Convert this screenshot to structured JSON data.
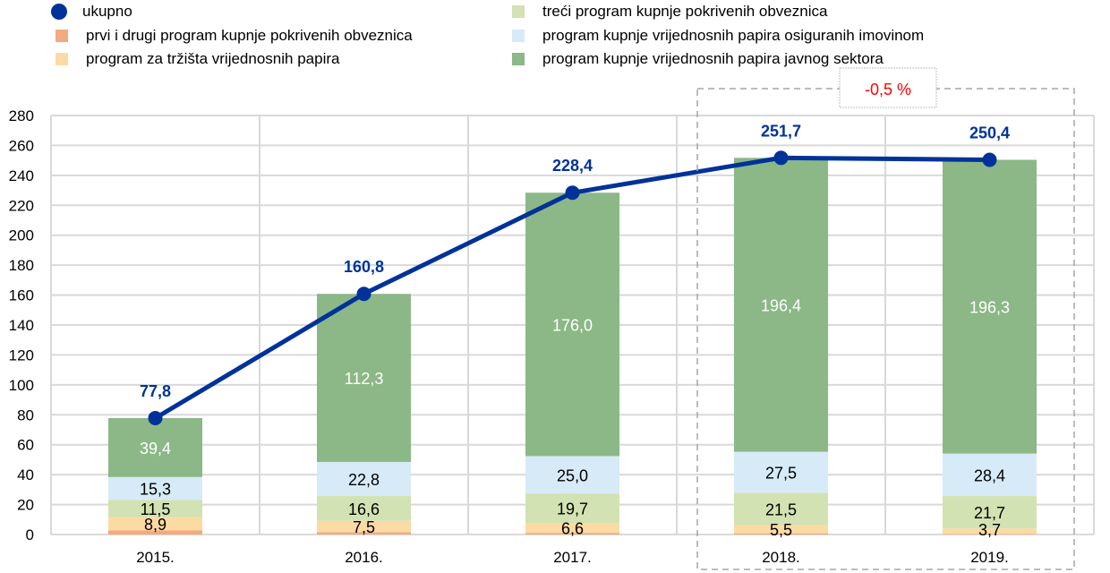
{
  "chart_data": {
    "type": "bar",
    "stacked": true,
    "categories": [
      "2015.",
      "2016.",
      "2017.",
      "2018.",
      "2019."
    ],
    "ylim": [
      0,
      280
    ],
    "yticks": [
      0,
      20,
      40,
      60,
      80,
      100,
      120,
      140,
      160,
      180,
      200,
      220,
      240,
      260,
      280
    ],
    "grid": true,
    "legend_position": "top",
    "series": [
      {
        "name": "prvi i drugi program kupnje pokrivenih obveznica",
        "color": "#f2aa7e",
        "values": [
          2.7,
          1.6,
          1.1,
          0.8,
          0.3
        ],
        "labels": [
          "",
          "",
          "",
          "",
          ""
        ]
      },
      {
        "name": "program za tržišta vrijednosnih papira",
        "color": "#fcdaa4",
        "values": [
          8.9,
          7.5,
          6.6,
          5.5,
          3.7
        ],
        "labels": [
          "8,9",
          "7,5",
          "6,6",
          "5,5",
          "3,7"
        ]
      },
      {
        "name": "treći program kupnje pokrivenih obveznica",
        "color": "#d2e2b2",
        "values": [
          11.5,
          16.6,
          19.7,
          21.5,
          21.7
        ],
        "labels": [
          "11,5",
          "16,6",
          "19,7",
          "21,5",
          "21,7"
        ]
      },
      {
        "name": "program kupnje vrijednosnih papira osiguranih imovinom",
        "color": "#d6ebf7",
        "values": [
          15.3,
          22.8,
          25.0,
          27.5,
          28.4
        ],
        "labels": [
          "15,3",
          "22,8",
          "25,0",
          "27,5",
          "28,4"
        ]
      },
      {
        "name": "program kupnje vrijednosnih papira javnog sektora",
        "color": "#8bb886",
        "values": [
          39.4,
          112.3,
          176.0,
          196.4,
          196.3
        ],
        "labels": [
          "39,4",
          "112,3",
          "176,0",
          "196,4",
          "196,3"
        ]
      }
    ],
    "line": {
      "name": "ukupno",
      "color": "#003299",
      "values": [
        77.8,
        160.8,
        228.4,
        251.7,
        250.4
      ],
      "labels": [
        "77,8",
        "160,8",
        "228,4",
        "251,7",
        "250,4"
      ]
    },
    "annotation": {
      "text": "-0,5 %",
      "color": "#ff0000",
      "highlight_categories": [
        "2018.",
        "2019."
      ]
    }
  },
  "legend": [
    {
      "label": "ukupno",
      "color": "#003299",
      "marker": "dot"
    },
    {
      "label": "prvi i drugi program kupnje pokrivenih obveznica",
      "color": "#f2aa7e",
      "marker": "square"
    },
    {
      "label": "program za tržišta vrijednosnih papira",
      "color": "#fcdaa4",
      "marker": "square"
    },
    {
      "label": "treći program kupnje pokrivenih obveznica",
      "color": "#d2e2b2",
      "marker": "square"
    },
    {
      "label": "program kupnje vrijednosnih papira osiguranih imovinom",
      "color": "#d6ebf7",
      "marker": "square"
    },
    {
      "label": "program kupnje vrijednosnih papira javnog sektora",
      "color": "#8bb886",
      "marker": "square"
    }
  ]
}
